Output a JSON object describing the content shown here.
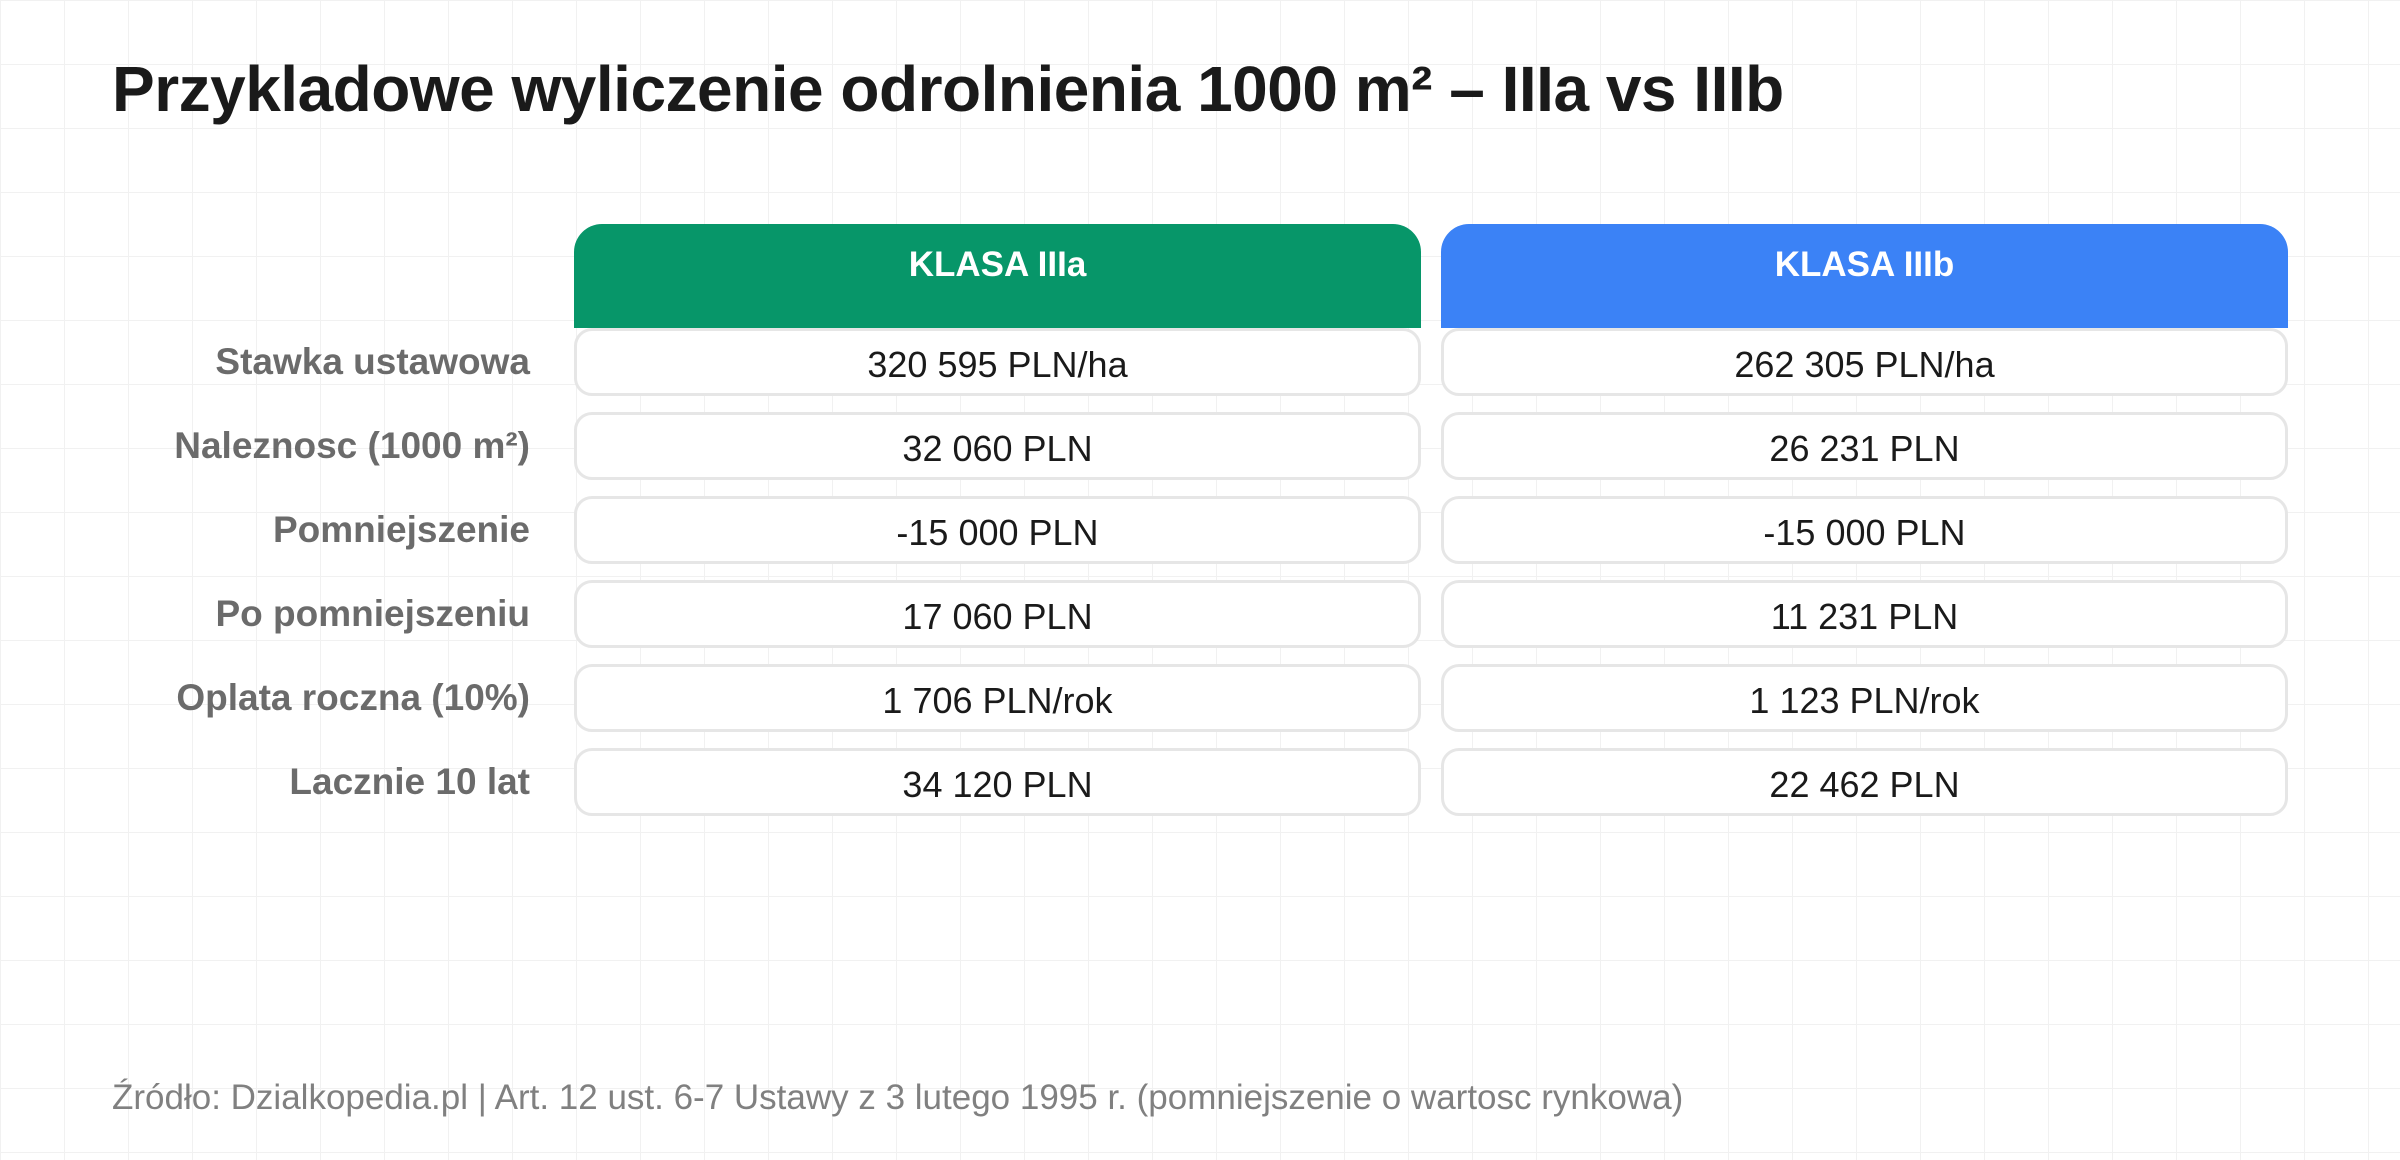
{
  "chart_data": {
    "type": "table",
    "title": "Przykladowe wyliczenie odrolnienia 1000 m² – IIIa vs IIIb",
    "columns": [
      {
        "label": "KLASA IIIa",
        "color": "#079669"
      },
      {
        "label": "KLASA IIIb",
        "color": "#3b82f6"
      }
    ],
    "rows": [
      {
        "label": "Stawka ustawowa",
        "values": [
          "320 595 PLN/ha",
          "262 305 PLN/ha"
        ]
      },
      {
        "label": "Naleznosc (1000 m²)",
        "values": [
          "32 060 PLN",
          "26 231 PLN"
        ]
      },
      {
        "label": "Pomniejszenie",
        "values": [
          "-15 000 PLN",
          "-15 000 PLN"
        ]
      },
      {
        "label": "Po pomniejszeniu",
        "values": [
          "17 060 PLN",
          "11 231 PLN"
        ]
      },
      {
        "label": "Oplata roczna (10%)",
        "values": [
          "1 706 PLN/rok",
          "1 123 PLN/rok"
        ]
      },
      {
        "label": "Lacznie 10 lat",
        "values": [
          "34 120 PLN",
          "22 462 PLN"
        ]
      }
    ],
    "source": "Źródło: Dzialkopedia.pl | Art. 12 ust. 6-7 Ustawy z 3 lutego 1995 r. (pomniejszenie o wartosc rynkowa)"
  }
}
